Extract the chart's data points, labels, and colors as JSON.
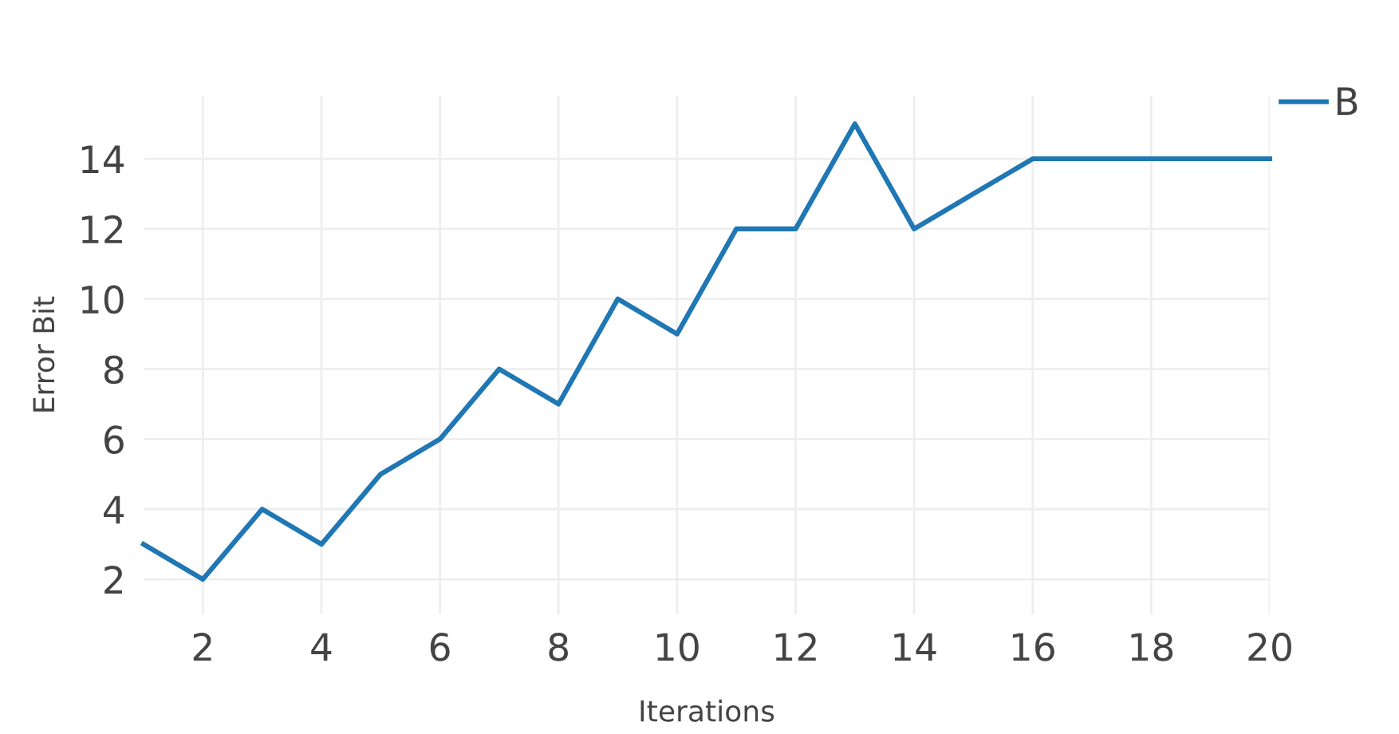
{
  "chart_data": {
    "type": "line",
    "xlabel": "Iterations",
    "ylabel": "Error Bit",
    "x": [
      1,
      2,
      3,
      4,
      5,
      6,
      7,
      8,
      9,
      10,
      11,
      12,
      13,
      14,
      15,
      16,
      17,
      18,
      19,
      20
    ],
    "series": [
      {
        "name": "B",
        "color": "#1f77b4",
        "values": [
          3,
          2,
          4,
          3,
          5,
          6,
          8,
          7,
          10,
          9,
          12,
          12,
          15,
          12,
          13,
          14,
          14,
          14,
          14,
          14
        ]
      }
    ],
    "xlim": [
      1,
      20
    ],
    "ylim": [
      1,
      15.8
    ],
    "xticks": [
      2,
      4,
      6,
      8,
      10,
      12,
      14,
      16,
      18,
      20
    ],
    "yticks": [
      2,
      4,
      6,
      8,
      10,
      12,
      14
    ],
    "grid": true,
    "legend": "top right",
    "marker": "none",
    "line_style": "solid"
  }
}
